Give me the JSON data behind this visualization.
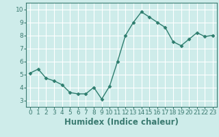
{
  "x": [
    0,
    1,
    2,
    3,
    4,
    5,
    6,
    7,
    8,
    9,
    10,
    11,
    12,
    13,
    14,
    15,
    16,
    17,
    18,
    19,
    20,
    21,
    22,
    23
  ],
  "y": [
    5.1,
    5.4,
    4.7,
    4.5,
    4.2,
    3.6,
    3.5,
    3.5,
    4.0,
    3.1,
    4.1,
    6.0,
    8.0,
    9.0,
    9.8,
    9.4,
    9.0,
    8.6,
    7.5,
    7.2,
    7.7,
    8.2,
    7.9,
    8.0
  ],
  "line_color": "#2e7d6e",
  "marker": "D",
  "marker_size": 2.5,
  "bg_color": "#ceecea",
  "grid_color": "#ffffff",
  "xlabel": "Humidex (Indice chaleur)",
  "xlim": [
    -0.5,
    23.5
  ],
  "ylim": [
    2.5,
    10.5
  ],
  "yticks": [
    3,
    4,
    5,
    6,
    7,
    8,
    9,
    10
  ],
  "xticks": [
    0,
    1,
    2,
    3,
    4,
    5,
    6,
    7,
    8,
    9,
    10,
    11,
    12,
    13,
    14,
    15,
    16,
    17,
    18,
    19,
    20,
    21,
    22,
    23
  ],
  "tick_fontsize": 6.5,
  "xlabel_fontsize": 8.5,
  "line_width": 1.0,
  "spine_color": "#3a7a70"
}
